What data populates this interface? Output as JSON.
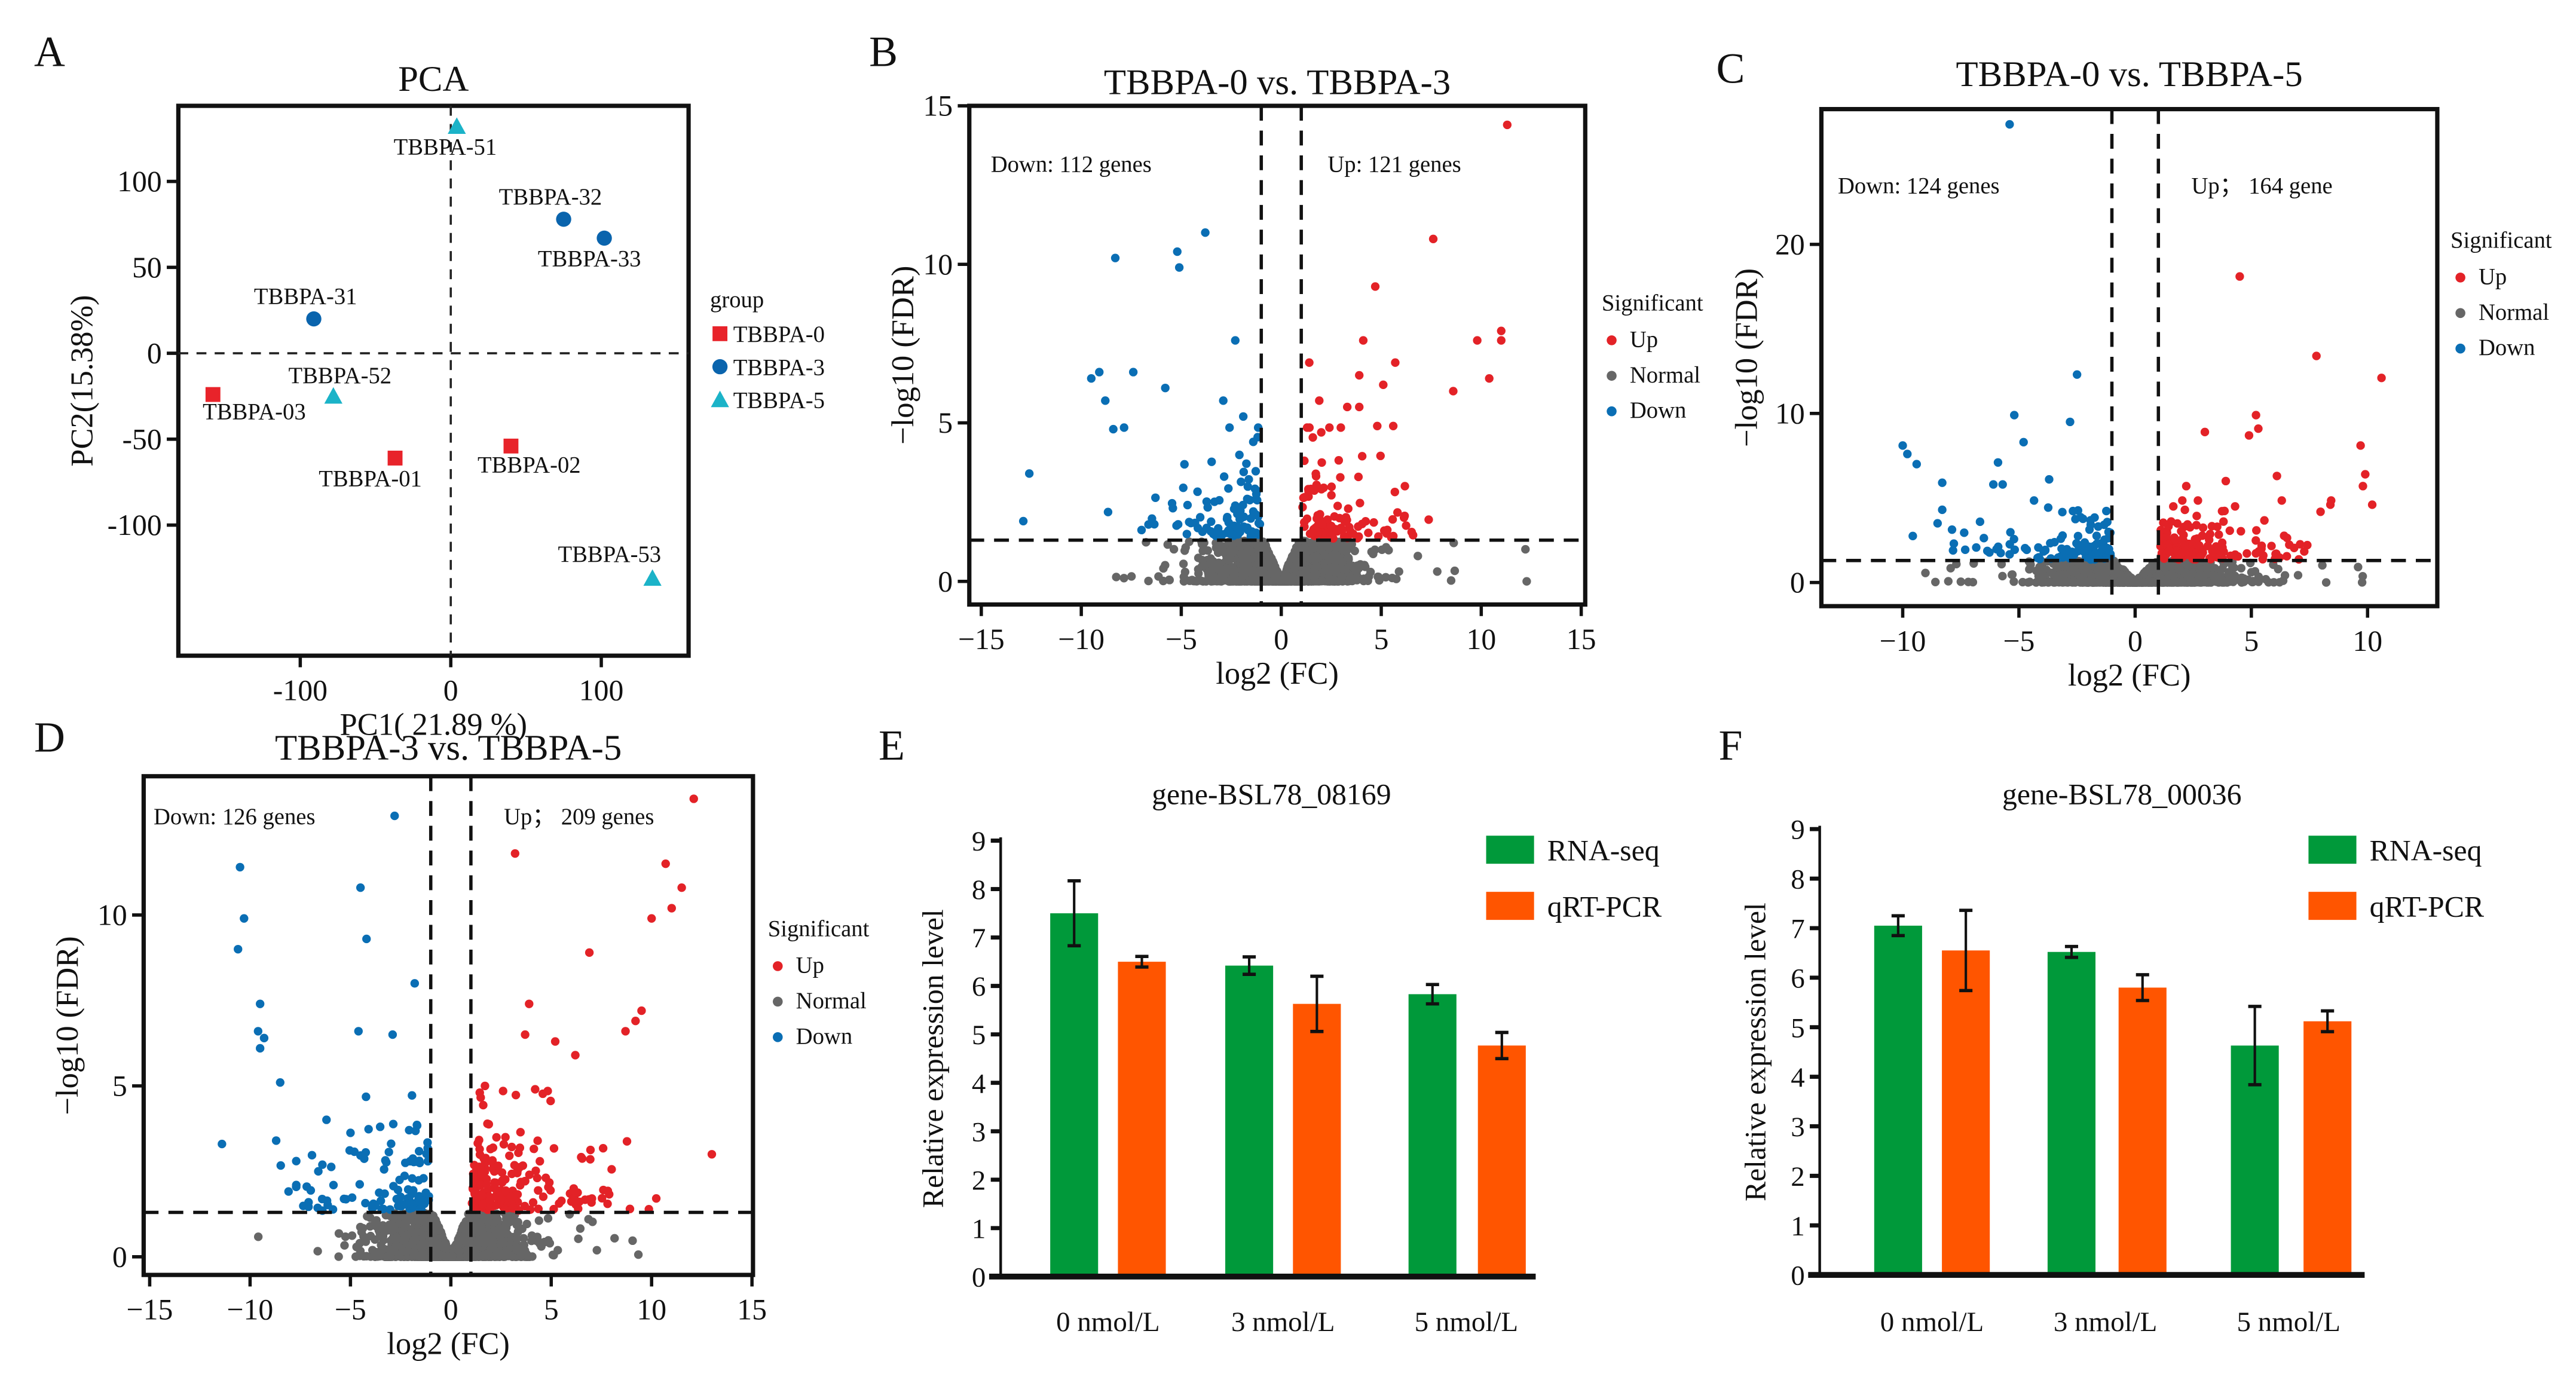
{
  "panel_letters": [
    "A",
    "B",
    "C",
    "D",
    "E",
    "F"
  ],
  "colors": {
    "up": "#e32227",
    "normal": "#666666",
    "down": "#0a6eb4",
    "pca_0": "#e8232a",
    "pca_3": "#0a64ad",
    "pca_5": "#1bb3c8",
    "rna_seq": "#00993a",
    "qrt_pcr": "#ff5500"
  },
  "chart_data": [
    {
      "type": "scatter",
      "title": "PCA",
      "xlabel": "PC1( 21.89 %)",
      "ylabel": "PC2(15.38%)",
      "xlim": [
        -181,
        158
      ],
      "ylim": [
        -176,
        144
      ],
      "xticks": [
        "-100",
        "0",
        "100"
      ],
      "xtick_values": [
        -100,
        0,
        100
      ],
      "yticks": [
        "-100",
        "-50",
        "0",
        "50",
        "100"
      ],
      "ytick_values": [
        -100,
        -50,
        0,
        50,
        100
      ],
      "reference_lines": {
        "x": 0,
        "y": 0
      },
      "legend": {
        "title": "group",
        "placement": "right",
        "entries": [
          "TBBPA-0",
          "TBBPA-3",
          "TBBPA-5"
        ]
      },
      "series": [
        {
          "name": "TBBPA-0",
          "marker": "square",
          "points": [
            {
              "label": "TBBPA-01",
              "x": -37,
              "y": -61
            },
            {
              "label": "TBBPA-02",
              "x": 40,
              "y": -54
            },
            {
              "label": "TBBPA-03",
              "x": -158,
              "y": -24
            }
          ]
        },
        {
          "name": "TBBPA-3",
          "marker": "circle",
          "points": [
            {
              "label": "TBBPA-31",
              "x": -91,
              "y": 20
            },
            {
              "label": "TBBPA-32",
              "x": 75,
              "y": 78
            },
            {
              "label": "TBBPA-33",
              "x": 102,
              "y": 67
            }
          ]
        },
        {
          "name": "TBBPA-5",
          "marker": "triangle",
          "points": [
            {
              "label": "TBBPA-51",
              "x": 4,
              "y": 132
            },
            {
              "label": "TBBPA-52",
              "x": -78,
              "y": -25
            },
            {
              "label": "TBBPA-53",
              "x": 134,
              "y": -131
            }
          ]
        }
      ]
    },
    {
      "type": "scatter",
      "title": "TBBPA-0 vs. TBBPA-3",
      "xlabel": "log2 (FC)",
      "ylabel": "−log10 (FDR)",
      "xlim": [
        -15.6,
        15.2
      ],
      "ylim": [
        -0.73,
        15
      ],
      "xticks": [
        "−15",
        "−10",
        "−5",
        "0",
        "5",
        "10",
        "15"
      ],
      "xtick_values": [
        -15,
        -10,
        -5,
        0,
        5,
        10,
        15
      ],
      "yticks": [
        "0",
        "5",
        "10",
        "15"
      ],
      "ytick_values": [
        0,
        5,
        10,
        15
      ],
      "thresholds": {
        "log2fc": [
          -1,
          1
        ],
        "neg_log10_fdr": 1.3
      },
      "annotations": {
        "down": "Down: 112 genes",
        "up": "Up: 121 genes"
      },
      "down_count": 112,
      "up_count": 121,
      "legend": {
        "title": "Significant",
        "placement": "right",
        "entries": [
          "Up",
          "Normal",
          "Down"
        ]
      },
      "highlight_points": {
        "down": [
          [
            -8.3,
            10.2
          ],
          [
            -5.2,
            10.4
          ],
          [
            -5.1,
            9.9
          ],
          [
            -3.8,
            11.0
          ],
          [
            -2.3,
            7.6
          ],
          [
            -9.5,
            6.4
          ],
          [
            -9.1,
            6.6
          ],
          [
            -7.4,
            6.6
          ],
          [
            -5.8,
            6.1
          ],
          [
            -8.8,
            5.7
          ],
          [
            -2.9,
            5.7
          ],
          [
            -1.9,
            5.2
          ],
          [
            -12.6,
            3.4
          ],
          [
            -12.9,
            1.9
          ],
          [
            -8.4,
            4.8
          ],
          [
            -1.4,
            4.4
          ]
        ],
        "up": [
          [
            11.3,
            14.4
          ],
          [
            7.6,
            10.8
          ],
          [
            4.7,
            9.3
          ],
          [
            4.1,
            7.6
          ],
          [
            9.8,
            7.6
          ],
          [
            11.0,
            7.9
          ],
          [
            11.0,
            7.6
          ],
          [
            10.4,
            6.4
          ],
          [
            1.4,
            6.9
          ],
          [
            5.7,
            6.9
          ],
          [
            3.9,
            6.5
          ],
          [
            5.1,
            6.2
          ],
          [
            8.6,
            6.0
          ],
          [
            1.9,
            5.7
          ],
          [
            3.3,
            5.5
          ],
          [
            3.9,
            5.5
          ],
          [
            4.8,
            4.9
          ],
          [
            5.6,
            4.9
          ],
          [
            2.0,
            4.7
          ]
        ]
      }
    },
    {
      "type": "scatter",
      "title": "TBBPA-0 vs. TBBPA-5",
      "xlabel": "log2 (FC)",
      "ylabel": "−log10 (FDR)",
      "xlim": [
        -13.5,
        13.0
      ],
      "ylim": [
        -1.4,
        28
      ],
      "xticks": [
        "−10",
        "−5",
        "0",
        "5",
        "10"
      ],
      "xtick_values": [
        -10,
        -5,
        0,
        5,
        10
      ],
      "yticks": [
        "0",
        "10",
        "20"
      ],
      "ytick_values": [
        0,
        10,
        20
      ],
      "thresholds": {
        "log2fc": [
          -1,
          1
        ],
        "neg_log10_fdr": 1.3
      },
      "annotations": {
        "down": "Down: 124 genes",
        "up": "Up； 164 gene"
      },
      "down_count": 124,
      "up_count": 164,
      "legend": {
        "title": "Significant",
        "placement": "right",
        "entries": [
          "Up",
          "Normal",
          "Down"
        ]
      },
      "highlight_points": {
        "down": [
          [
            -5.4,
            27.1
          ],
          [
            -2.5,
            12.3
          ],
          [
            -5.2,
            9.9
          ],
          [
            -2.8,
            9.5
          ],
          [
            -4.8,
            8.3
          ],
          [
            -10,
            8.1
          ],
          [
            -9.8,
            7.6
          ],
          [
            -9.4,
            7.0
          ],
          [
            -5.9,
            7.1
          ],
          [
            -8.3,
            5.9
          ],
          [
            -6.1,
            5.8
          ],
          [
            -5.7,
            5.8
          ],
          [
            -3.7,
            6.1
          ],
          [
            -8.3,
            4.3
          ],
          [
            -7.8,
            2.3
          ],
          [
            -8.5,
            3.5
          ]
        ],
        "up": [
          [
            4.5,
            18.1
          ],
          [
            7.8,
            13.4
          ],
          [
            10.6,
            12.1
          ],
          [
            5.2,
            9.9
          ],
          [
            5.3,
            9.1
          ],
          [
            4.9,
            8.7
          ],
          [
            3.0,
            8.9
          ],
          [
            9.7,
            8.1
          ],
          [
            9.9,
            6.4
          ],
          [
            6.1,
            6.3
          ],
          [
            3.9,
            6.0
          ],
          [
            2.2,
            5.7
          ],
          [
            9.8,
            5.7
          ],
          [
            10.2,
            4.6
          ],
          [
            8.4,
            4.6
          ],
          [
            4.3,
            4.5
          ]
        ]
      }
    },
    {
      "type": "scatter",
      "title": "TBBPA-3 vs. TBBPA-5",
      "xlabel": "log2 (FC)",
      "ylabel": "−log10 (FDR)",
      "xlim": [
        -15.3,
        15.05
      ],
      "ylim": [
        -0.53,
        14.06
      ],
      "xticks": [
        "−15",
        "−10",
        "−5",
        "0",
        "5",
        "10",
        "15"
      ],
      "xtick_values": [
        -15,
        -10,
        -5,
        0,
        5,
        10,
        15
      ],
      "yticks": [
        "0",
        "5",
        "10"
      ],
      "ytick_values": [
        0,
        5,
        10
      ],
      "thresholds": {
        "log2fc": [
          -1,
          1
        ],
        "neg_log10_fdr": 1.3
      },
      "annotations": {
        "down": "Down: 126 genes",
        "up": "Up； 209 genes"
      },
      "down_count": 126,
      "up_count": 209,
      "legend": {
        "title": "Significant",
        "placement": "right",
        "entries": [
          "Up",
          "Normal",
          "Down"
        ]
      },
      "highlight_points": {
        "down": [
          [
            -2.8,
            12.9
          ],
          [
            -10.5,
            11.4
          ],
          [
            -4.5,
            10.8
          ],
          [
            -10.3,
            9.9
          ],
          [
            -10.6,
            9.0
          ],
          [
            -4.2,
            9.3
          ],
          [
            -1.8,
            8.0
          ],
          [
            -9.5,
            7.4
          ],
          [
            -9.6,
            6.6
          ],
          [
            -9.3,
            6.4
          ],
          [
            -9.5,
            6.1
          ],
          [
            -4.6,
            6.6
          ],
          [
            -2.9,
            6.5
          ],
          [
            -8.5,
            5.1
          ],
          [
            -11.4,
            3.3
          ],
          [
            -8.7,
            3.4
          ],
          [
            -7.7,
            2.8
          ],
          [
            -6.6,
            2.5
          ]
        ],
        "up": [
          [
            12.1,
            13.4
          ],
          [
            3.2,
            11.8
          ],
          [
            10.7,
            11.5
          ],
          [
            11.5,
            10.8
          ],
          [
            11.0,
            10.2
          ],
          [
            10.0,
            9.9
          ],
          [
            6.9,
            8.9
          ],
          [
            3.9,
            7.4
          ],
          [
            9.5,
            7.2
          ],
          [
            9.2,
            6.9
          ],
          [
            8.7,
            6.6
          ],
          [
            3.7,
            6.5
          ],
          [
            5.2,
            6.3
          ],
          [
            6.2,
            5.9
          ],
          [
            13.0,
            3.0
          ],
          [
            1.7,
            5.0
          ],
          [
            4.2,
            4.9
          ]
        ]
      }
    },
    {
      "type": "bar",
      "title": "gene-BSL78_08169",
      "ylabel": "Relative expression level",
      "ylim": [
        0,
        9
      ],
      "yticks": [
        "0",
        "1",
        "2",
        "3",
        "4",
        "5",
        "6",
        "7",
        "8",
        "9"
      ],
      "categories": [
        "0 nmol/L",
        "3 nmol/L",
        "5 nmol/L"
      ],
      "legend": {
        "placement": "top-right",
        "entries": [
          "RNA-seq",
          "qRT-PCR"
        ]
      },
      "series": [
        {
          "name": "RNA-seq",
          "values": [
            7.5,
            6.42,
            5.83
          ],
          "errors": [
            0.67,
            0.18,
            0.2
          ]
        },
        {
          "name": "qRT-PCR",
          "values": [
            6.5,
            5.63,
            4.77
          ],
          "errors": [
            0.11,
            0.57,
            0.27
          ]
        }
      ]
    },
    {
      "type": "bar",
      "title": "gene-BSL78_00036",
      "ylabel": "Relative expression level",
      "ylim": [
        0,
        9
      ],
      "yticks": [
        "0",
        "1",
        "2",
        "3",
        "4",
        "5",
        "6",
        "7",
        "8",
        "9"
      ],
      "categories": [
        "0 nmol/L",
        "3 nmol/L",
        "5 nmol/L"
      ],
      "legend": {
        "placement": "top-right",
        "entries": [
          "RNA-seq",
          "qRT-PCR"
        ]
      },
      "series": [
        {
          "name": "RNA-seq",
          "values": [
            7.05,
            6.52,
            4.63
          ],
          "errors": [
            0.2,
            0.11,
            0.79
          ]
        },
        {
          "name": "qRT-PCR",
          "values": [
            6.55,
            5.8,
            5.12
          ],
          "errors": [
            0.81,
            0.26,
            0.21
          ]
        }
      ]
    }
  ]
}
